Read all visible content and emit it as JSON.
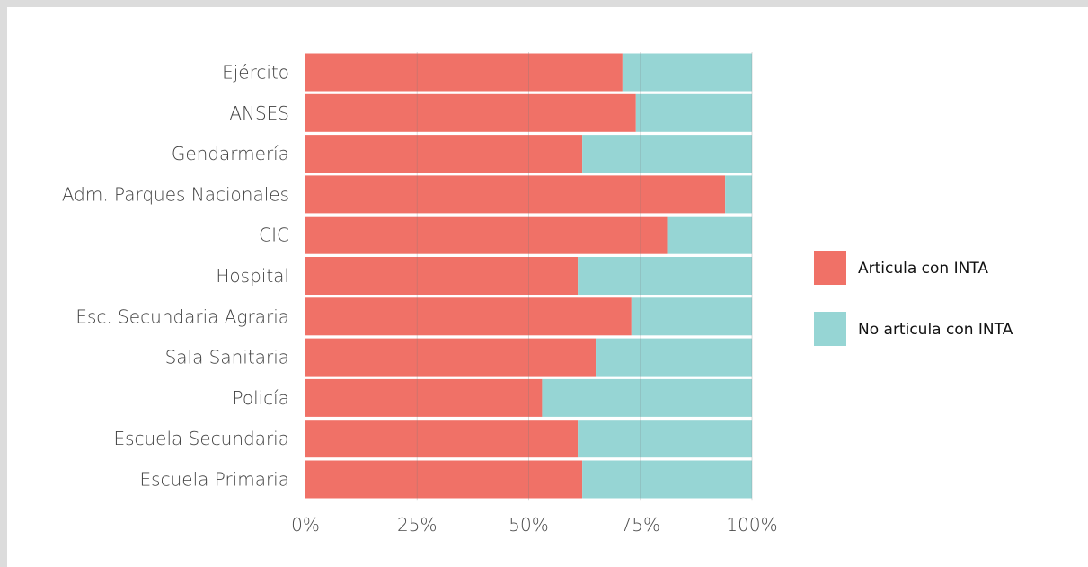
{
  "chart_data": {
    "type": "bar",
    "orientation": "horizontal",
    "stacked": true,
    "categories": [
      "Ejército",
      "ANSES",
      "Gendarmería",
      "Adm. Parques Nacionales",
      "CIC",
      "Hospital",
      "Esc. Secundaria Agraria",
      "Sala Sanitaria",
      "Policía",
      "Escuela Secundaria",
      "Escuela Primaria"
    ],
    "series": [
      {
        "name": "Articula con INTA",
        "color": "#f07167",
        "values": [
          71,
          74,
          62,
          94,
          81,
          61,
          73,
          65,
          53,
          61,
          62
        ]
      },
      {
        "name": "No articula con INTA",
        "color": "#96d5d4",
        "values": [
          29,
          26,
          38,
          6,
          19,
          39,
          27,
          35,
          47,
          39,
          38
        ]
      }
    ],
    "x_ticks": [
      "0%",
      "25%",
      "50%",
      "75%",
      "100%"
    ],
    "xlim": [
      0,
      100
    ],
    "grid": "vertical",
    "legend_position": "right"
  }
}
